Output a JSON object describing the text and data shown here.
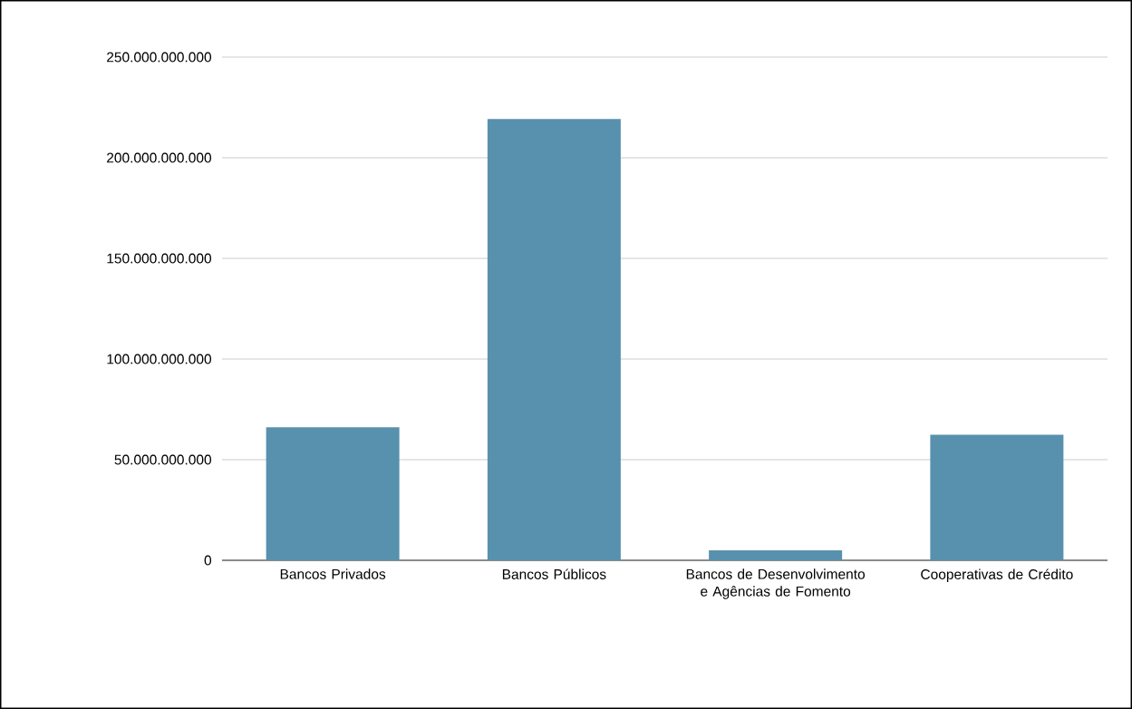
{
  "chart_data": {
    "type": "bar",
    "categories": [
      "Bancos Privados",
      "Bancos Públicos",
      "Bancos de Desenvolvimento e Agências de Fomento",
      "Cooperativas de Crédito"
    ],
    "values": [
      66100000000,
      219300000000,
      4900000000,
      62400000000
    ],
    "color": "#5891ae",
    "ylim": [
      0,
      250000000000
    ],
    "yticks": [
      {
        "value": 0,
        "label": "0"
      },
      {
        "value": 50000000000,
        "label": "50.000.000.000"
      },
      {
        "value": 100000000000,
        "label": "100.000.000.000"
      },
      {
        "value": 150000000000,
        "label": "150.000.000.000"
      },
      {
        "value": 200000000000,
        "label": "200.000.000.000"
      },
      {
        "value": 250000000000,
        "label": "250.000.000.000"
      }
    ],
    "grid": "y"
  }
}
